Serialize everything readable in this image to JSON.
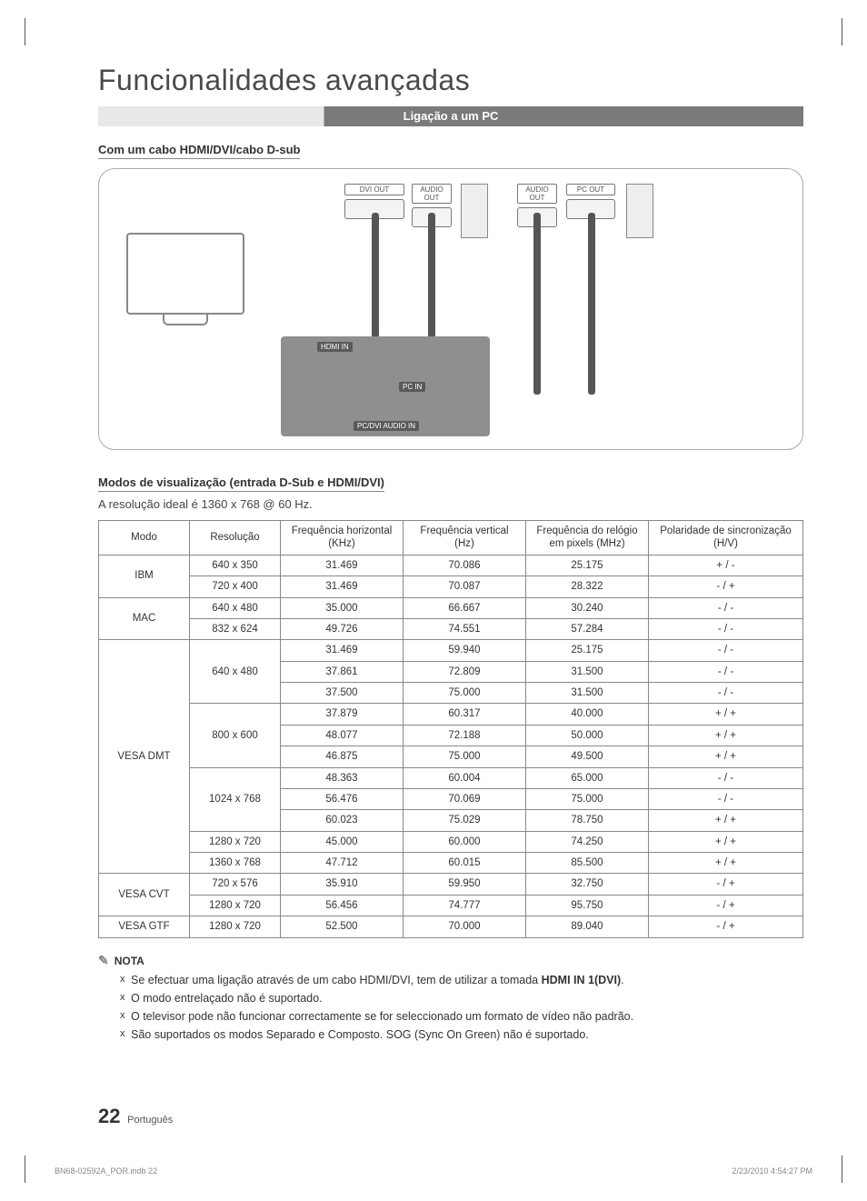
{
  "title": "Funcionalidades avançadas",
  "section_bar": "Ligação a um PC",
  "subhead1": "Com um cabo HDMI/DVI/cabo D-sub",
  "diagram": {
    "ports_top": [
      "DVI OUT",
      "AUDIO OUT",
      "AUDIO OUT",
      "PC OUT"
    ],
    "panel_labels": [
      "HDMI IN",
      "PC IN",
      "PC/DVI AUDIO IN"
    ]
  },
  "subhead2": "Modos de visualização (entrada D-Sub e HDMI/DVI)",
  "ideal": "A resolução ideal é 1360 x 768 @ 60 Hz.",
  "table": {
    "headers": [
      "Modo",
      "Resolução",
      "Frequência horizontal (KHz)",
      "Frequência vertical (Hz)",
      "Frequência do relógio em pixels (MHz)",
      "Polaridade de sincronização (H/V)"
    ],
    "groups": [
      {
        "mode": "IBM",
        "rows": [
          [
            "640 x 350",
            "31.469",
            "70.086",
            "25.175",
            "+ / -"
          ],
          [
            "720 x 400",
            "31.469",
            "70.087",
            "28.322",
            "- / +"
          ]
        ]
      },
      {
        "mode": "MAC",
        "rows": [
          [
            "640 x 480",
            "35.000",
            "66.667",
            "30.240",
            "- / -"
          ],
          [
            "832 x 624",
            "49.726",
            "74.551",
            "57.284",
            "- / -"
          ]
        ]
      },
      {
        "mode": "VESA DMT",
        "subgroups": [
          {
            "res": "640 x 480",
            "rows": [
              [
                "31.469",
                "59.940",
                "25.175",
                "- / -"
              ],
              [
                "37.861",
                "72.809",
                "31.500",
                "- / -"
              ],
              [
                "37.500",
                "75.000",
                "31.500",
                "- / -"
              ]
            ]
          },
          {
            "res": "800 x 600",
            "rows": [
              [
                "37.879",
                "60.317",
                "40.000",
                "+ / +"
              ],
              [
                "48.077",
                "72.188",
                "50.000",
                "+ / +"
              ],
              [
                "46.875",
                "75.000",
                "49.500",
                "+ / +"
              ]
            ]
          },
          {
            "res": "1024 x 768",
            "rows": [
              [
                "48.363",
                "60.004",
                "65.000",
                "- / -"
              ],
              [
                "56.476",
                "70.069",
                "75.000",
                "- / -"
              ],
              [
                "60.023",
                "75.029",
                "78.750",
                "+ / +"
              ]
            ]
          },
          {
            "res": "1280 x 720",
            "rows": [
              [
                "45.000",
                "60.000",
                "74.250",
                "+ / +"
              ]
            ]
          },
          {
            "res": "1360 x 768",
            "rows": [
              [
                "47.712",
                "60.015",
                "85.500",
                "+ / +"
              ]
            ]
          }
        ]
      },
      {
        "mode": "VESA CVT",
        "rows": [
          [
            "720 x 576",
            "35.910",
            "59.950",
            "32.750",
            "- / +"
          ],
          [
            "1280 x 720",
            "56.456",
            "74.777",
            "95.750",
            "- / +"
          ]
        ]
      },
      {
        "mode": "VESA GTF",
        "rows": [
          [
            "1280 x 720",
            "52.500",
            "70.000",
            "89.040",
            "- / +"
          ]
        ]
      }
    ]
  },
  "note_label": "NOTA",
  "notes": [
    {
      "pre": "Se efectuar uma ligação através de um cabo HDMI/DVI, tem de utilizar a tomada ",
      "bold": "HDMI IN 1(DVI)",
      "post": "."
    },
    {
      "pre": "O modo entrelaçado não é suportado.",
      "bold": "",
      "post": ""
    },
    {
      "pre": "O televisor pode não funcionar correctamente se for seleccionado um formato de vídeo não padrão.",
      "bold": "",
      "post": ""
    },
    {
      "pre": "São suportados os modos Separado e Composto. SOG (Sync On Green) não é suportado.",
      "bold": "",
      "post": ""
    }
  ],
  "page_number": "22",
  "page_lang": "Português",
  "imprint_left": "BN68-02592A_POR.indb   22",
  "imprint_right": "2/23/2010   4:54:27 PM"
}
